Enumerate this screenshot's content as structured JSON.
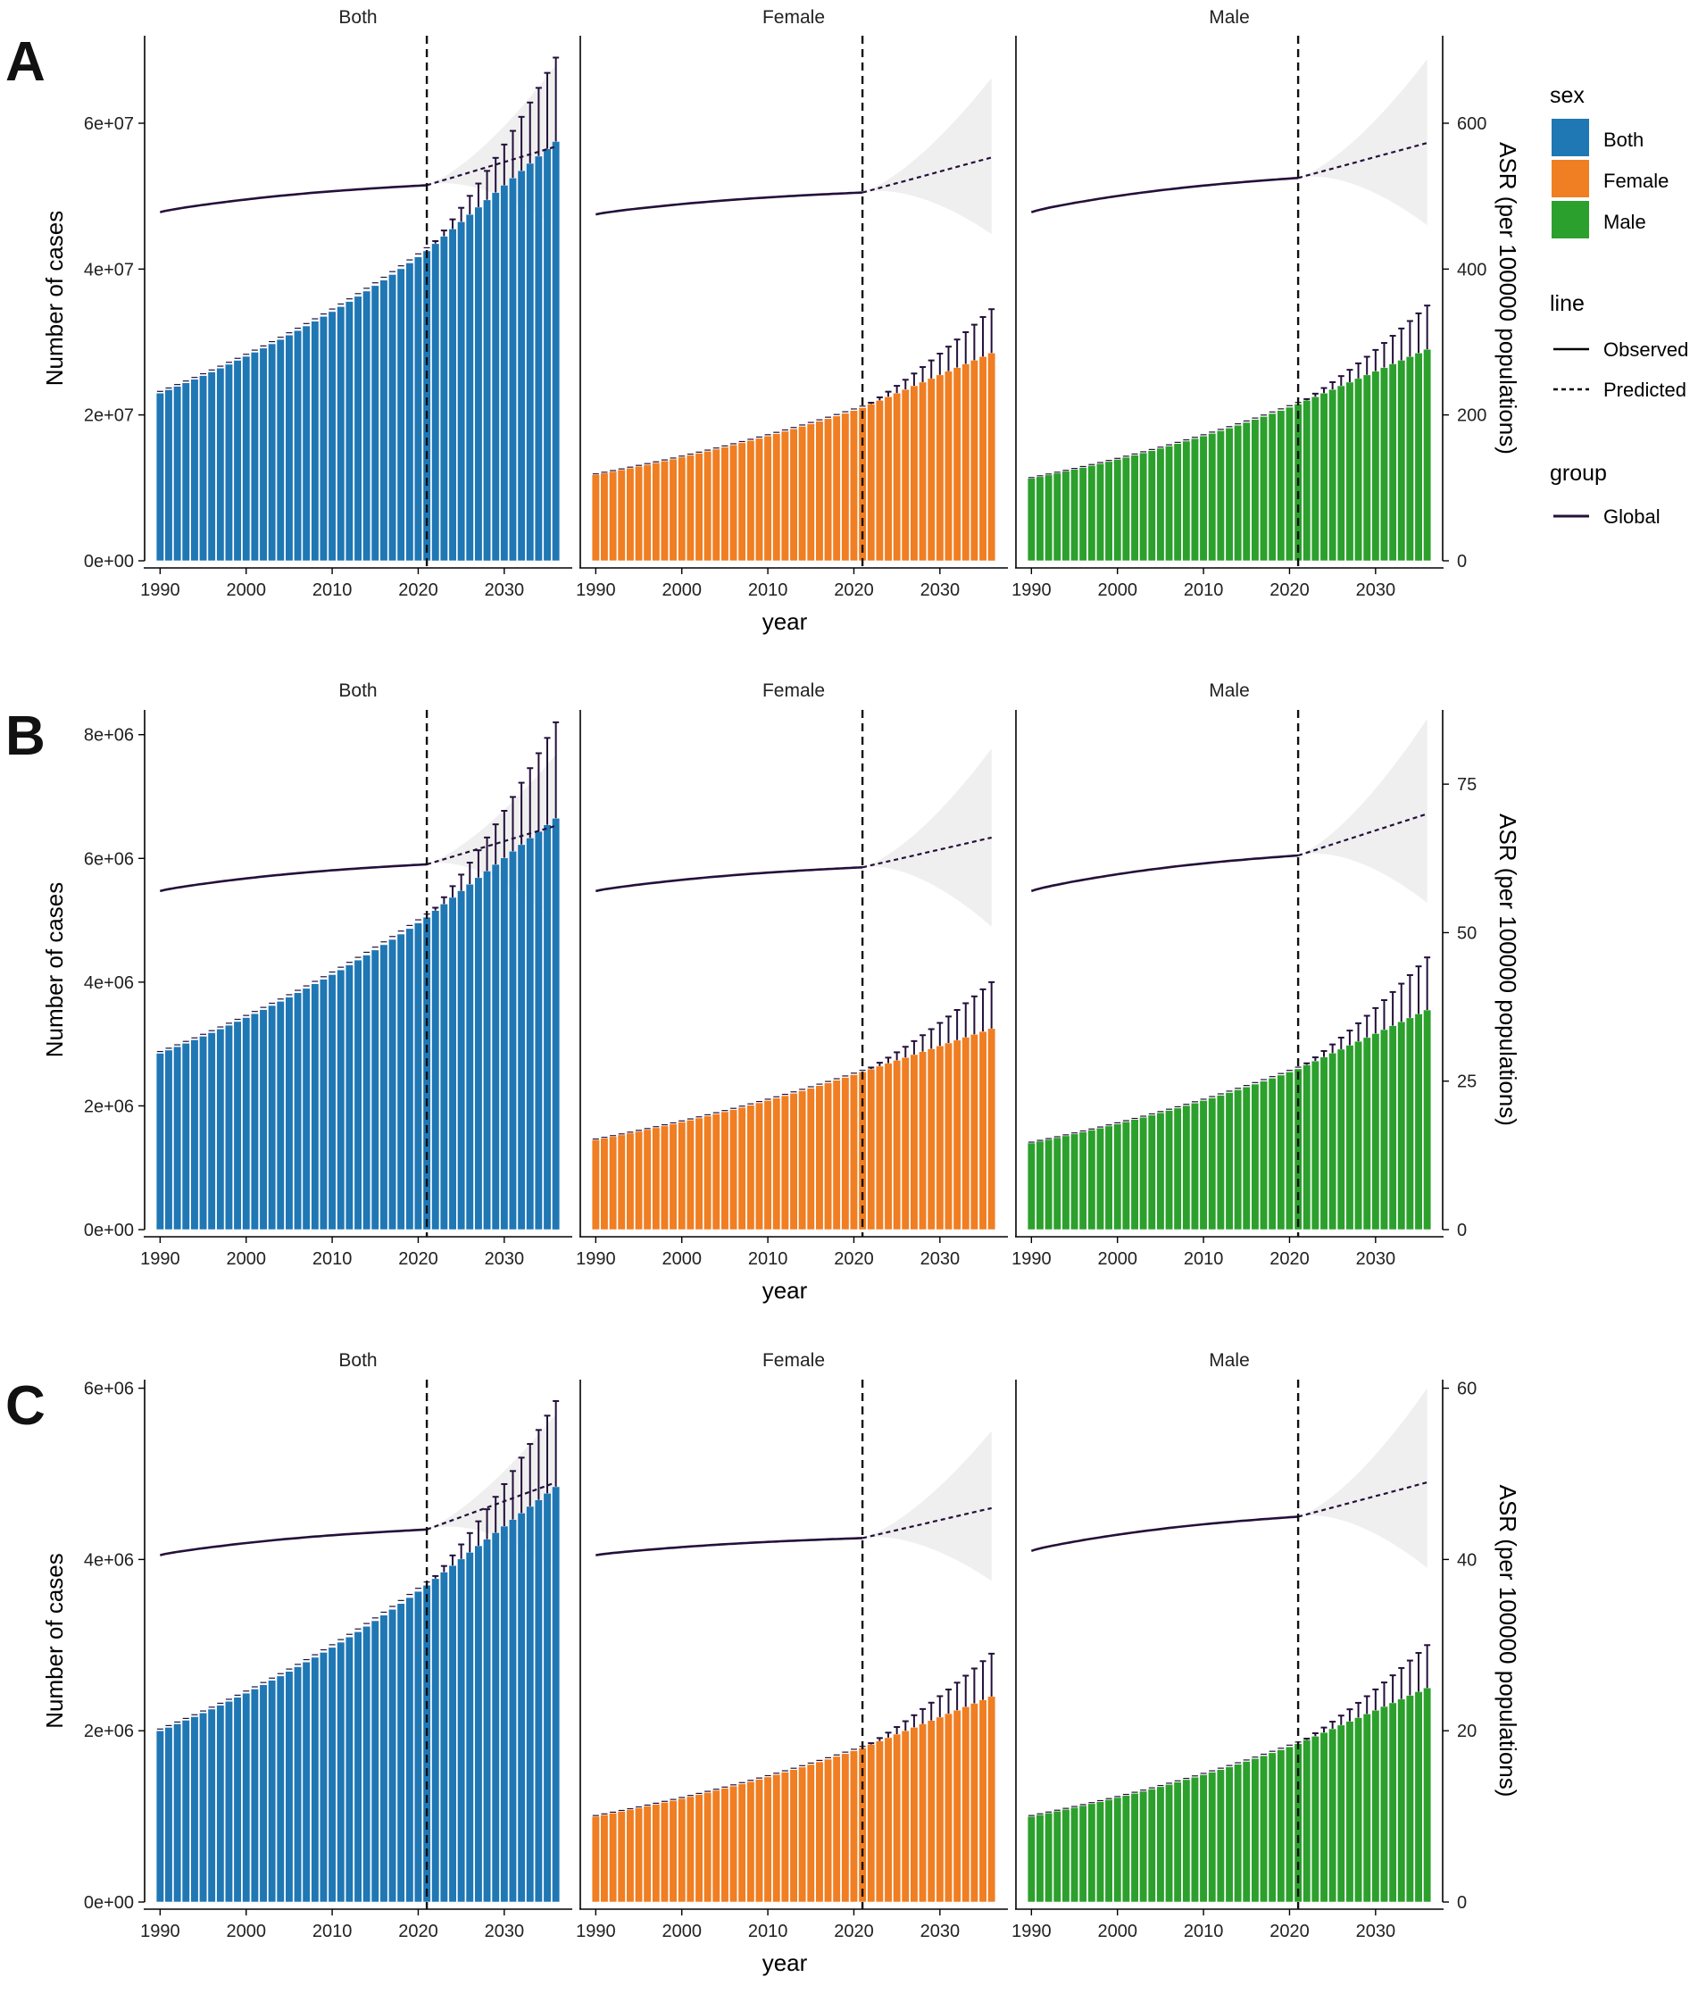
{
  "figure": {
    "panel_labels": [
      "A",
      "B",
      "C"
    ],
    "facet_labels": [
      "Both",
      "Female",
      "Male"
    ],
    "xlabel": "year",
    "ylabel_left": "Number of cases",
    "ylabel_right": "ASR (per 100000 populations)",
    "x_ticks": [
      1990,
      2000,
      2010,
      2020,
      2030
    ],
    "observed_end_year": 2021,
    "year_range": [
      1990,
      2036
    ],
    "colors": {
      "Both": "#1f77b4",
      "Female": "#f07e22",
      "Male": "#2ca02c",
      "line": "#24103a",
      "band": "#efefef",
      "errorbar": "#24103a"
    }
  },
  "legend": {
    "sex_title": "sex",
    "sex_items": [
      "Both",
      "Female",
      "Male"
    ],
    "line_title": "line",
    "line_items": [
      "Observed",
      "Predicted"
    ],
    "group_title": "group",
    "group_items": [
      "Global"
    ]
  },
  "chart_data": [
    {
      "panel": "A",
      "type": "bar",
      "xlabel": "year",
      "ylabel": "Number of cases",
      "y2label": "ASR (per 100000 populations)",
      "ylim": [
        0,
        72000000
      ],
      "y_ticks": [
        0,
        20000000,
        40000000,
        60000000
      ],
      "y_tick_labels": [
        "0e+00",
        "2e+07",
        "4e+07",
        "6e+07"
      ],
      "y2lim": [
        0,
        720
      ],
      "y2_ticks": [
        0,
        200,
        400,
        600
      ],
      "y2_tick_labels": [
        "0",
        "200",
        "400",
        "600"
      ],
      "series": [
        {
          "name": "Both",
          "cases_1990": 23000000,
          "cases_2021": 42500000,
          "cases_2036": 57500000,
          "errorbar_top_2036": 69000000,
          "asr_1990": 478,
          "asr_2021": 515,
          "asr_2036": 568,
          "asr_band_2036": [
            458,
            680
          ]
        },
        {
          "name": "Female",
          "cases_1990": 11800000,
          "cases_2021": 21000000,
          "cases_2036": 28500000,
          "errorbar_top_2036": 34500000,
          "asr_1990": 475,
          "asr_2021": 505,
          "asr_2036": 553,
          "asr_band_2036": [
            448,
            662
          ]
        },
        {
          "name": "Male",
          "cases_1990": 11300000,
          "cases_2021": 21500000,
          "cases_2036": 29000000,
          "errorbar_top_2036": 35000000,
          "asr_1990": 478,
          "asr_2021": 525,
          "asr_2036": 573,
          "asr_band_2036": [
            460,
            688
          ]
        }
      ]
    },
    {
      "panel": "B",
      "type": "bar",
      "xlabel": "year",
      "ylabel": "Number of cases",
      "y2label": "ASR (per 100000 populations)",
      "ylim": [
        0,
        8400000
      ],
      "y_ticks": [
        0,
        2000000,
        4000000,
        6000000,
        8000000
      ],
      "y_tick_labels": [
        "0e+00",
        "2e+06",
        "4e+06",
        "6e+06",
        "8e+06"
      ],
      "y2lim": [
        0,
        87.5
      ],
      "y2_ticks": [
        0,
        25,
        50,
        75
      ],
      "y2_tick_labels": [
        "0",
        "25",
        "50",
        "75"
      ],
      "series": [
        {
          "name": "Both",
          "cases_1990": 2850000,
          "cases_2021": 5050000,
          "cases_2036": 6650000,
          "errorbar_top_2036": 8200000,
          "asr_1990": 57,
          "asr_2021": 61.5,
          "asr_2036": 68,
          "asr_band_2036": [
            52,
            80
          ]
        },
        {
          "name": "Female",
          "cases_1990": 1450000,
          "cases_2021": 2550000,
          "cases_2036": 3250000,
          "errorbar_top_2036": 4000000,
          "asr_1990": 57,
          "asr_2021": 61,
          "asr_2036": 66,
          "asr_band_2036": [
            51,
            81
          ]
        },
        {
          "name": "Male",
          "cases_1990": 1400000,
          "cases_2021": 2600000,
          "cases_2036": 3550000,
          "errorbar_top_2036": 4400000,
          "asr_1990": 57,
          "asr_2021": 63,
          "asr_2036": 70,
          "asr_band_2036": [
            55,
            86
          ]
        }
      ]
    },
    {
      "panel": "C",
      "type": "bar",
      "xlabel": "year",
      "ylabel": "Number of cases",
      "y2label": "ASR (per 100000 populations)",
      "ylim": [
        0,
        6100000
      ],
      "y_ticks": [
        0,
        2000000,
        4000000,
        6000000
      ],
      "y_tick_labels": [
        "0e+00",
        "2e+06",
        "4e+06",
        "6e+06"
      ],
      "y2lim": [
        0,
        61
      ],
      "y2_ticks": [
        0,
        20,
        40,
        60
      ],
      "y2_tick_labels": [
        "0",
        "20",
        "40",
        "60"
      ],
      "series": [
        {
          "name": "Both",
          "cases_1990": 2000000,
          "cases_2021": 3700000,
          "cases_2036": 4850000,
          "errorbar_top_2036": 5850000,
          "asr_1990": 40.5,
          "asr_2021": 43.5,
          "asr_2036": 49,
          "asr_band_2036": [
            39,
            57
          ]
        },
        {
          "name": "Female",
          "cases_1990": 1000000,
          "cases_2021": 1800000,
          "cases_2036": 2400000,
          "errorbar_top_2036": 2900000,
          "asr_1990": 40.5,
          "asr_2021": 42.5,
          "asr_2036": 46,
          "asr_band_2036": [
            37.5,
            55
          ]
        },
        {
          "name": "Male",
          "cases_1990": 1000000,
          "cases_2021": 1850000,
          "cases_2036": 2500000,
          "errorbar_top_2036": 3000000,
          "asr_1990": 41,
          "asr_2021": 45,
          "asr_2036": 49,
          "asr_band_2036": [
            39,
            60
          ]
        }
      ]
    }
  ]
}
